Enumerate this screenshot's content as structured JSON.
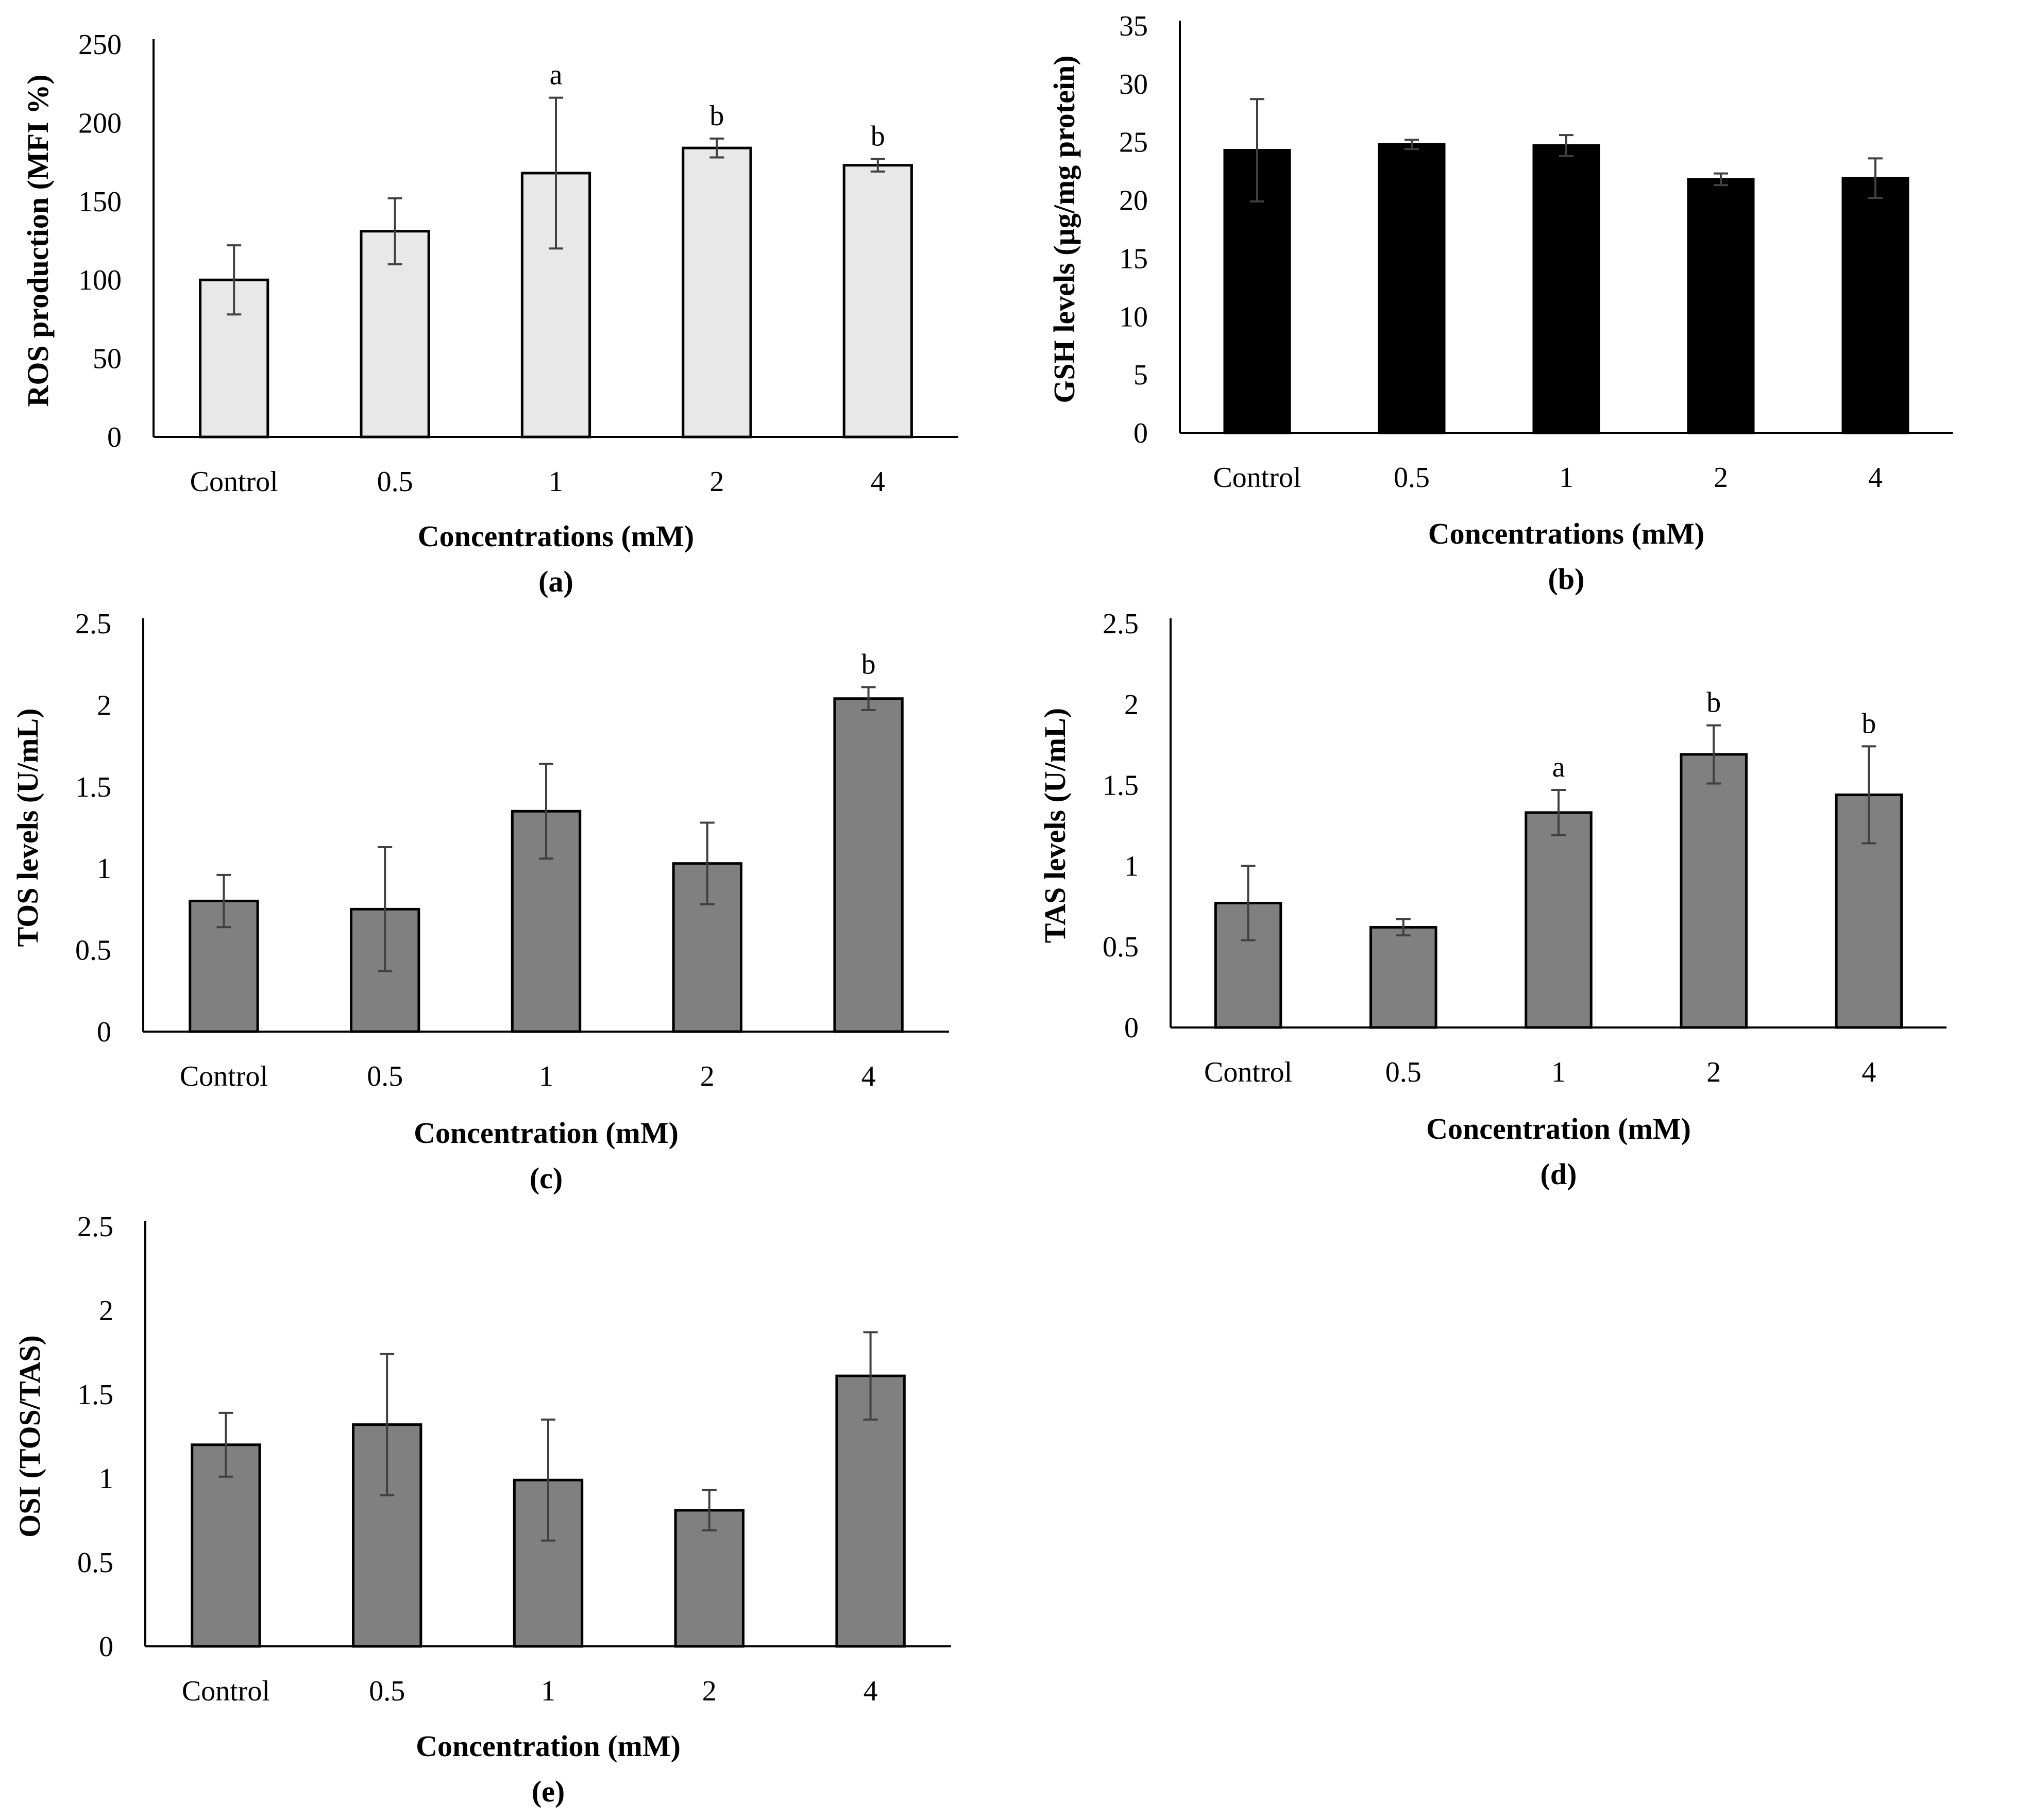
{
  "figure": {
    "colors": {
      "light_bar": "#e8e8e8",
      "black_bar": "#000000",
      "gray_bar": "#808080",
      "error_bar": "#404040",
      "axis": "#000000"
    }
  },
  "chart_data": [
    {
      "id": "a",
      "type": "bar",
      "panel_label": "(a)",
      "categories": [
        "Control",
        "0.5",
        "1",
        "2",
        "4"
      ],
      "values": [
        100,
        131,
        168,
        184,
        173
      ],
      "errors": [
        22,
        21,
        48,
        6,
        4
      ],
      "significance": [
        "",
        "",
        "a",
        "b",
        "b"
      ],
      "xlabel": "Concentrations (mM)",
      "ylabel": "ROS production (MFI %)",
      "ylim": [
        0,
        250
      ],
      "yticks": [
        0,
        50,
        100,
        150,
        200,
        250
      ],
      "ytick_labels": [
        "0",
        "50",
        "100",
        "150",
        "200",
        "250"
      ],
      "bar_style": "light",
      "grid": false
    },
    {
      "id": "b",
      "type": "bar",
      "panel_label": "(b)",
      "categories": [
        "Control",
        "0.5",
        "1",
        "2",
        "4"
      ],
      "values": [
        24.3,
        24.8,
        24.7,
        21.8,
        21.9
      ],
      "errors": [
        4.4,
        0.4,
        0.9,
        0.5,
        1.7
      ],
      "significance": [
        "",
        "",
        "",
        "",
        ""
      ],
      "xlabel": "Concentrations (mM)",
      "ylabel": "GSH levels (µg/mg protein)",
      "ylim": [
        0,
        35
      ],
      "yticks": [
        0,
        5,
        10,
        15,
        20,
        25,
        30,
        35
      ],
      "ytick_labels": [
        "0",
        "5",
        "10",
        "15",
        "20",
        "25",
        "30",
        "35"
      ],
      "bar_style": "black",
      "grid": false
    },
    {
      "id": "c",
      "type": "bar",
      "panel_label": "(c)",
      "categories": [
        "Control",
        "0.5",
        "1",
        "2",
        "4"
      ],
      "values": [
        0.8,
        0.75,
        1.35,
        1.03,
        2.04
      ],
      "errors": [
        0.16,
        0.38,
        0.29,
        0.25,
        0.07
      ],
      "significance": [
        "",
        "",
        "",
        "",
        "b"
      ],
      "xlabel": "Concentration (mM)",
      "ylabel": "TOS levels (U/mL)",
      "ylim": [
        0,
        2.5
      ],
      "yticks": [
        0,
        0.5,
        1,
        1.5,
        2,
        2.5
      ],
      "ytick_labels": [
        "0",
        "0.5",
        "1",
        "1.5",
        "2",
        "2.5"
      ],
      "bar_style": "gray",
      "grid": false
    },
    {
      "id": "d",
      "type": "bar",
      "panel_label": "(d)",
      "categories": [
        "Control",
        "0.5",
        "1",
        "2",
        "4"
      ],
      "values": [
        0.77,
        0.62,
        1.33,
        1.69,
        1.44
      ],
      "errors": [
        0.23,
        0.05,
        0.14,
        0.18,
        0.3
      ],
      "significance": [
        "",
        "",
        "a",
        "b",
        "b"
      ],
      "xlabel": "Concentration (mM)",
      "ylabel": "TAS levels (U/mL)",
      "ylim": [
        0,
        2.5
      ],
      "yticks": [
        0,
        0.5,
        1,
        1.5,
        2,
        2.5
      ],
      "ytick_labels": [
        "0",
        "0.5",
        "1",
        "1.5",
        "2",
        "2.5"
      ],
      "bar_style": "gray",
      "grid": false
    },
    {
      "id": "e",
      "type": "bar",
      "panel_label": "(e)",
      "categories": [
        "Control",
        "0.5",
        "1",
        "2",
        "4"
      ],
      "values": [
        1.2,
        1.32,
        0.99,
        0.81,
        1.61
      ],
      "errors": [
        0.19,
        0.42,
        0.36,
        0.12,
        0.26
      ],
      "significance": [
        "",
        "",
        "",
        "",
        ""
      ],
      "xlabel": "Concentration (mM)",
      "ylabel": "OSI (TOS/TAS)",
      "ylim": [
        0,
        2.5
      ],
      "yticks": [
        0,
        0.5,
        1,
        1.5,
        2,
        2.5
      ],
      "ytick_labels": [
        "0",
        "0.5",
        "1",
        "1.5",
        "2",
        "2.5"
      ],
      "bar_style": "gray",
      "grid": false
    }
  ]
}
